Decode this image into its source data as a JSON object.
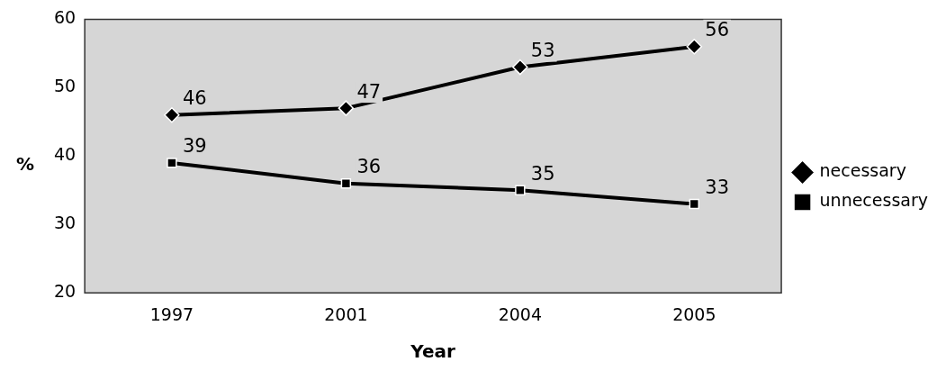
{
  "chart_data": {
    "type": "line",
    "xlabel": "Year",
    "ylabel": "%",
    "categories": [
      "1997",
      "2001",
      "2004",
      "2005"
    ],
    "series": [
      {
        "name": "necessary",
        "color": "#000000",
        "marker": "diamond",
        "values": [
          46,
          47,
          53,
          56
        ]
      },
      {
        "name": "unnecessary",
        "color": "#000000",
        "marker": "square",
        "values": [
          39,
          36,
          35,
          33
        ]
      }
    ],
    "ylim": [
      20,
      60
    ],
    "yticks": [
      20,
      30,
      40,
      50,
      60
    ],
    "grid": false,
    "legend": "right",
    "data_labels": true
  }
}
